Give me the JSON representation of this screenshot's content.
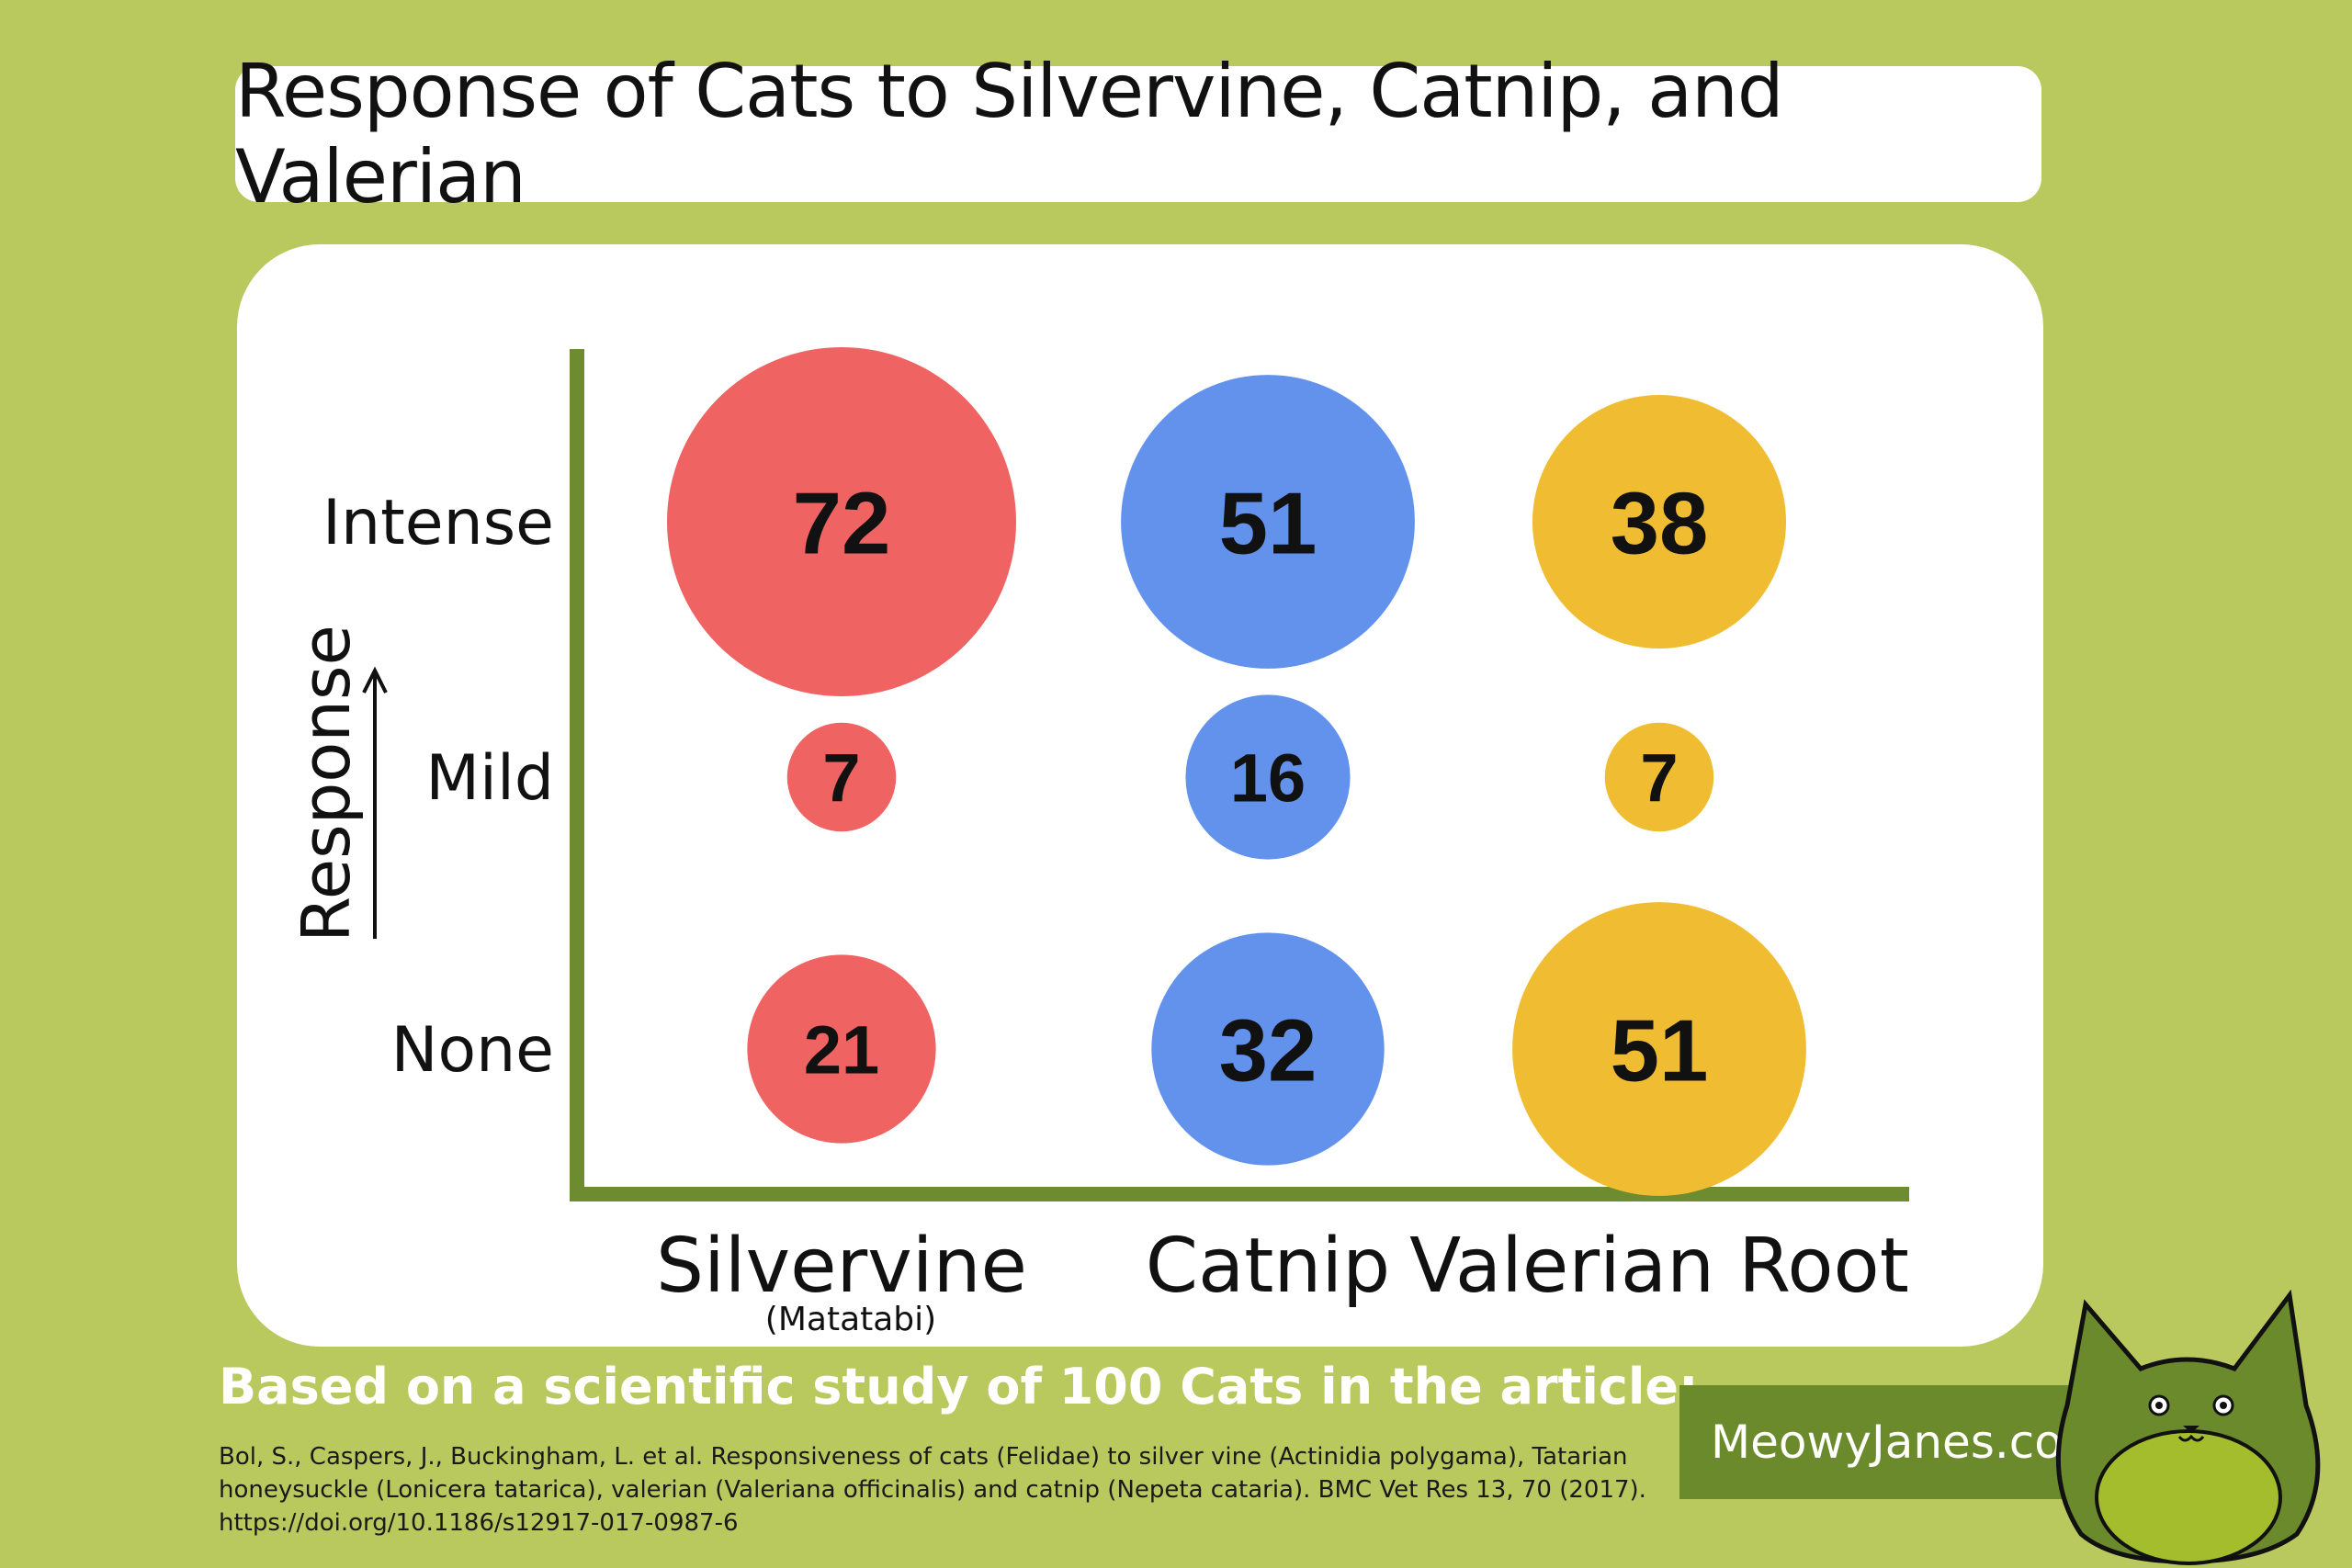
{
  "title": "Response of Cats to Silvervine, Catnip, and Valerian",
  "chart_data": {
    "type": "bubble",
    "y_axis_title": "Response",
    "categories": [
      {
        "name": "Silvervine",
        "subtitle": "(Matatabi)",
        "color": "#f06363"
      },
      {
        "name": "Catnip",
        "subtitle": "",
        "color": "#6292ec"
      },
      {
        "name": "Valerian Root",
        "subtitle": "",
        "color": "#f0bd32"
      }
    ],
    "levels": [
      "Intense",
      "Mild",
      "None"
    ],
    "values": [
      [
        72,
        7,
        21
      ],
      [
        51,
        16,
        32
      ],
      [
        38,
        7,
        51
      ]
    ]
  },
  "footer": {
    "study_heading": "Based on a scientific study of 100 Cats in the article:",
    "citation": "Bol, S., Caspers, J., Buckingham, L. et al. Responsiveness of cats (Felidae) to silver vine (Actinidia polygama), Tatarian honeysuckle (Lonicera tatarica), valerian (Valeriana officinalis) and catnip (Nepeta cataria). BMC Vet Res 13, 70 (2017). https://doi.org/10.1186/s12917-017-0987-6",
    "site": "MeowyJanes.com"
  },
  "mascot_icon": "green-cat-icon"
}
